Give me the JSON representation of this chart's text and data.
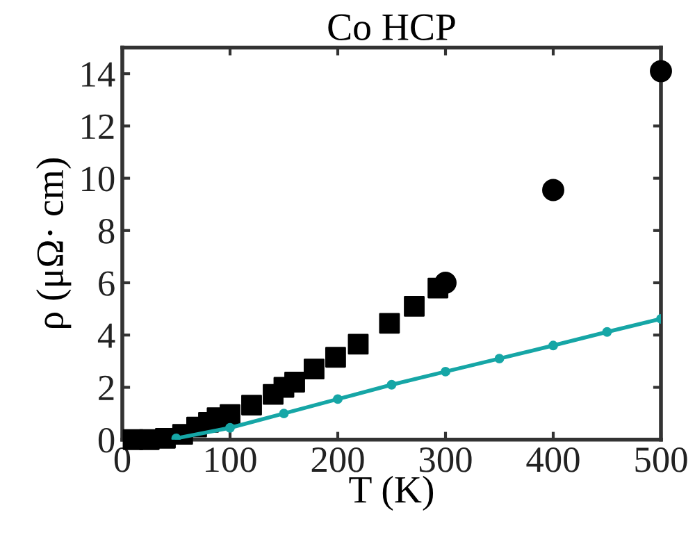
{
  "chart_data": {
    "type": "scatter",
    "title": "Co HCP",
    "xlabel": "T (K)",
    "ylabel": "ρ (μΩ· cm)",
    "xlim": [
      0,
      500
    ],
    "ylim": [
      0,
      15
    ],
    "xticks": [
      0,
      100,
      200,
      300,
      400,
      500
    ],
    "yticks": [
      0,
      2,
      4,
      6,
      8,
      10,
      12,
      14
    ],
    "grid": false,
    "legend": false,
    "series": [
      {
        "marker": "square",
        "color": "#000000",
        "x": [
          10,
          25,
          40,
          56,
          69,
          80,
          88,
          100,
          120,
          140,
          150,
          160,
          178,
          198,
          219,
          248,
          271,
          293
        ],
        "values": [
          0.0,
          0.0,
          0.05,
          0.2,
          0.48,
          0.66,
          0.84,
          0.96,
          1.32,
          1.73,
          2.0,
          2.2,
          2.7,
          3.15,
          3.65,
          4.45,
          5.1,
          5.8
        ]
      },
      {
        "marker": "circle",
        "color": "#000000",
        "x": [
          300,
          400,
          500
        ],
        "values": [
          6.0,
          9.55,
          14.1
        ]
      },
      {
        "type": "line",
        "marker": "circle",
        "line_style": "solid",
        "color": "#16a6a6",
        "x": [
          50,
          100,
          150,
          200,
          250,
          300,
          350,
          400,
          450,
          500
        ],
        "values": [
          0.05,
          0.45,
          1.0,
          1.55,
          2.1,
          2.6,
          3.1,
          3.6,
          4.12,
          4.62
        ]
      }
    ]
  }
}
